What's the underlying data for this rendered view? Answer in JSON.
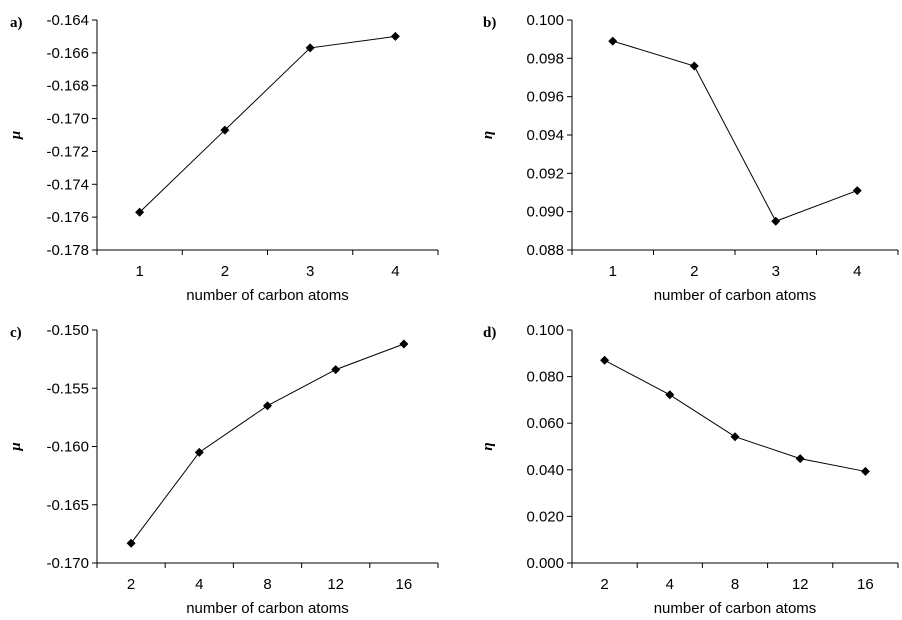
{
  "chart_data": [
    {
      "type": "line",
      "panel_label": "a)",
      "categories": [
        "1",
        "2",
        "3",
        "4"
      ],
      "values": [
        -0.1757,
        -0.1707,
        -0.1657,
        -0.165
      ],
      "xlabel": "number of carbon atoms",
      "ylabel": "μ",
      "ylim": [
        -0.178,
        -0.164
      ],
      "yticks": [
        "-0.164",
        "-0.166",
        "-0.168",
        "-0.170",
        "-0.172",
        "-0.174",
        "-0.176",
        "-0.178"
      ],
      "grid": false
    },
    {
      "type": "line",
      "panel_label": "b)",
      "categories": [
        "1",
        "2",
        "3",
        "4"
      ],
      "values": [
        0.0989,
        0.0976,
        0.0895,
        0.0911
      ],
      "xlabel": "number of carbon atoms",
      "ylabel": "η",
      "ylim": [
        0.088,
        0.1
      ],
      "yticks": [
        "0.100",
        "0.098",
        "0.096",
        "0.094",
        "0.092",
        "0.090",
        "0.088"
      ],
      "grid": false
    },
    {
      "type": "line",
      "panel_label": "c)",
      "categories": [
        "2",
        "4",
        "8",
        "12",
        "16"
      ],
      "values": [
        -0.1683,
        -0.1605,
        -0.1565,
        -0.1534,
        -0.1512
      ],
      "xlabel": "number of carbon atoms",
      "ylabel": "μ",
      "ylim": [
        -0.17,
        -0.15
      ],
      "yticks": [
        "-0.150",
        "-0.155",
        "-0.160",
        "-0.165",
        "-0.170"
      ],
      "grid": false
    },
    {
      "type": "line",
      "panel_label": "d)",
      "categories": [
        "2",
        "4",
        "8",
        "12",
        "16"
      ],
      "values": [
        0.087,
        0.0722,
        0.0542,
        0.0448,
        0.0393
      ],
      "xlabel": "number of carbon atoms",
      "ylabel": "η",
      "ylim": [
        0,
        0.1
      ],
      "yticks": [
        "0.100",
        "0.080",
        "0.060",
        "0.040",
        "0.020",
        "0.000"
      ],
      "grid": false
    }
  ]
}
